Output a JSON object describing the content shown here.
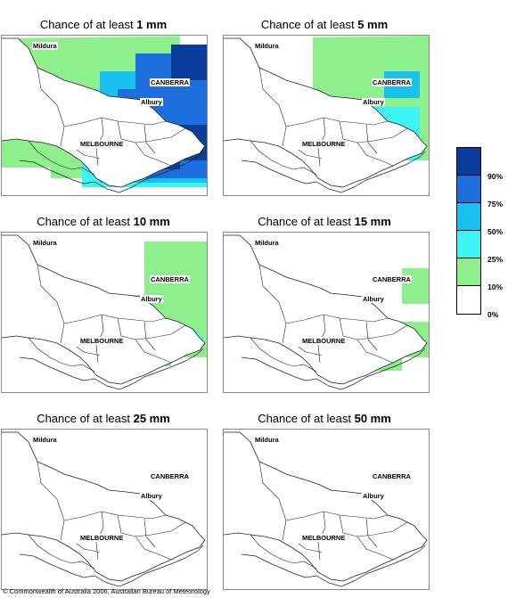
{
  "panels": [
    {
      "prefix": "Chance of at least ",
      "amount": "1 mm"
    },
    {
      "prefix": "Chance of at least ",
      "amount": "5 mm"
    },
    {
      "prefix": "Chance of at least ",
      "amount": "10 mm"
    },
    {
      "prefix": "Chance of at least ",
      "amount": "15 mm"
    },
    {
      "prefix": "Chance of at least ",
      "amount": "25 mm"
    },
    {
      "prefix": "Chance of at least ",
      "amount": "50 mm"
    }
  ],
  "places": {
    "mildura": "Mildura",
    "canberra": "CANBERRA",
    "albury": "Albury",
    "melbourne": "MELBOURNE"
  },
  "legend": {
    "labels": [
      "90%",
      "75%",
      "50%",
      "25%",
      "10%",
      "0%"
    ],
    "colors": [
      "#0a3d9c",
      "#1c6fdc",
      "#19c2ee",
      "#3cf4f4",
      "#8ef08c",
      "#ffffff"
    ]
  },
  "copyright": "© Commonwealth of Australia 2006, Australian Bureau of Meteorology"
}
